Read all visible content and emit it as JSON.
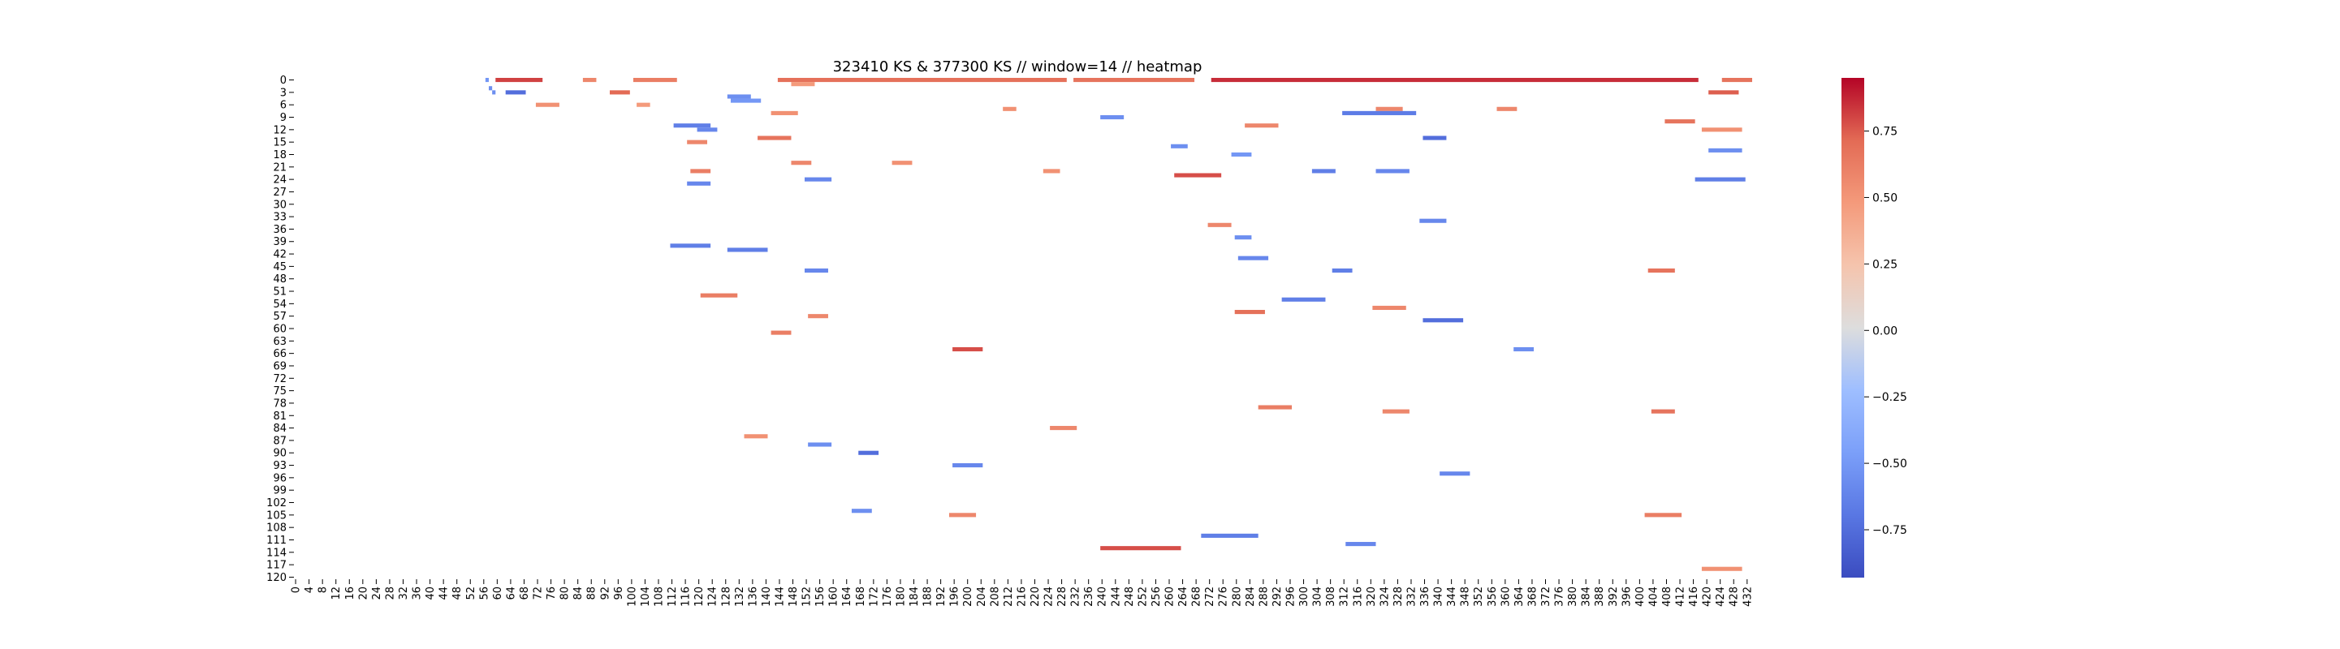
{
  "chart_data": {
    "type": "heatmap",
    "title": "323410 KS & 377300 KS // window=14 // heatmap",
    "xlabel": "",
    "ylabel": "",
    "x_range": [
      0,
      434
    ],
    "y_range": [
      0,
      121
    ],
    "x_tick_labels": [
      "0",
      "4",
      "8",
      "12",
      "16",
      "20",
      "24",
      "28",
      "32",
      "36",
      "40",
      "44",
      "48",
      "52",
      "56",
      "60",
      "64",
      "68",
      "72",
      "76",
      "80",
      "84",
      "88",
      "92",
      "96",
      "100",
      "104",
      "108",
      "112",
      "116",
      "120",
      "124",
      "128",
      "132",
      "136",
      "140",
      "144",
      "148",
      "152",
      "156",
      "160",
      "164",
      "168",
      "172",
      "176",
      "180",
      "184",
      "188",
      "192",
      "196",
      "200",
      "204",
      "208",
      "212",
      "216",
      "220",
      "224",
      "228",
      "232",
      "236",
      "240",
      "244",
      "248",
      "252",
      "256",
      "260",
      "264",
      "268",
      "272",
      "276",
      "280",
      "284",
      "288",
      "292",
      "296",
      "300",
      "304",
      "308",
      "312",
      "316",
      "320",
      "324",
      "328",
      "332",
      "336",
      "340",
      "344",
      "348",
      "352",
      "356",
      "360",
      "364",
      "368",
      "372",
      "376",
      "380",
      "384",
      "388",
      "392",
      "396",
      "400",
      "404",
      "408",
      "412",
      "416",
      "420",
      "424",
      "428",
      "432"
    ],
    "y_tick_labels": [
      "0",
      "3",
      "6",
      "9",
      "12",
      "15",
      "18",
      "21",
      "24",
      "27",
      "30",
      "33",
      "36",
      "39",
      "42",
      "45",
      "48",
      "51",
      "54",
      "57",
      "60",
      "63",
      "66",
      "69",
      "72",
      "75",
      "78",
      "81",
      "84",
      "87",
      "90",
      "93",
      "96",
      "99",
      "102",
      "105",
      "108",
      "111",
      "114",
      "117",
      "120"
    ],
    "colorbar": {
      "colormap": "coolwarm",
      "vmin": -0.93,
      "vmax": 0.95,
      "tick_values": [
        -0.75,
        -0.5,
        -0.25,
        0.0,
        0.25,
        0.5,
        0.75
      ],
      "tick_labels": [
        "−0.75",
        "−0.50",
        "−0.25",
        "0.00",
        "0.25",
        "0.50",
        "0.75"
      ]
    },
    "segments": [
      {
        "row": 0,
        "x0": 57,
        "x1": 58,
        "value": -0.55
      },
      {
        "row": 0,
        "x0": 60,
        "x1": 74,
        "value": 0.85
      },
      {
        "row": 0,
        "x0": 86,
        "x1": 90,
        "value": 0.6
      },
      {
        "row": 0,
        "x0": 101,
        "x1": 114,
        "value": 0.65
      },
      {
        "row": 0,
        "x0": 144,
        "x1": 230,
        "value": 0.72
      },
      {
        "row": 0,
        "x0": 232,
        "x1": 268,
        "value": 0.7
      },
      {
        "row": 0,
        "x0": 273,
        "x1": 418,
        "value": 0.9
      },
      {
        "row": 0,
        "x0": 425,
        "x1": 434,
        "value": 0.7
      },
      {
        "row": 1,
        "x0": 148,
        "x1": 155,
        "value": 0.5
      },
      {
        "row": 2,
        "x0": 58,
        "x1": 59,
        "value": -0.6
      },
      {
        "row": 3,
        "x0": 59,
        "x1": 60,
        "value": -0.6
      },
      {
        "row": 3,
        "x0": 63,
        "x1": 69,
        "value": -0.8
      },
      {
        "row": 3,
        "x0": 94,
        "x1": 100,
        "value": 0.75
      },
      {
        "row": 3,
        "x0": 421,
        "x1": 430,
        "value": 0.78
      },
      {
        "row": 4,
        "x0": 129,
        "x1": 136,
        "value": -0.6
      },
      {
        "row": 5,
        "x0": 130,
        "x1": 139,
        "value": -0.55
      },
      {
        "row": 6,
        "x0": 72,
        "x1": 79,
        "value": 0.55
      },
      {
        "row": 6,
        "x0": 102,
        "x1": 106,
        "value": 0.5
      },
      {
        "row": 7,
        "x0": 211,
        "x1": 215,
        "value": 0.55
      },
      {
        "row": 7,
        "x0": 322,
        "x1": 330,
        "value": 0.6
      },
      {
        "row": 7,
        "x0": 358,
        "x1": 364,
        "value": 0.6
      },
      {
        "row": 8,
        "x0": 142,
        "x1": 150,
        "value": 0.55
      },
      {
        "row": 8,
        "x0": 312,
        "x1": 334,
        "value": -0.72
      },
      {
        "row": 9,
        "x0": 240,
        "x1": 247,
        "value": -0.6
      },
      {
        "row": 10,
        "x0": 408,
        "x1": 417,
        "value": 0.7
      },
      {
        "row": 11,
        "x0": 113,
        "x1": 124,
        "value": -0.7
      },
      {
        "row": 11,
        "x0": 283,
        "x1": 293,
        "value": 0.6
      },
      {
        "row": 12,
        "x0": 120,
        "x1": 126,
        "value": -0.65
      },
      {
        "row": 12,
        "x0": 419,
        "x1": 431,
        "value": 0.55
      },
      {
        "row": 14,
        "x0": 138,
        "x1": 148,
        "value": 0.7
      },
      {
        "row": 14,
        "x0": 336,
        "x1": 343,
        "value": -0.8
      },
      {
        "row": 15,
        "x0": 117,
        "x1": 123,
        "value": 0.6
      },
      {
        "row": 16,
        "x0": 261,
        "x1": 266,
        "value": -0.6
      },
      {
        "row": 17,
        "x0": 421,
        "x1": 431,
        "value": -0.6
      },
      {
        "row": 18,
        "x0": 279,
        "x1": 285,
        "value": -0.55
      },
      {
        "row": 20,
        "x0": 148,
        "x1": 154,
        "value": 0.6
      },
      {
        "row": 20,
        "x0": 178,
        "x1": 184,
        "value": 0.55
      },
      {
        "row": 22,
        "x0": 118,
        "x1": 124,
        "value": 0.65
      },
      {
        "row": 22,
        "x0": 223,
        "x1": 228,
        "value": 0.55
      },
      {
        "row": 22,
        "x0": 303,
        "x1": 310,
        "value": -0.7
      },
      {
        "row": 22,
        "x0": 322,
        "x1": 332,
        "value": -0.65
      },
      {
        "row": 23,
        "x0": 262,
        "x1": 276,
        "value": 0.82
      },
      {
        "row": 24,
        "x0": 152,
        "x1": 160,
        "value": -0.65
      },
      {
        "row": 24,
        "x0": 417,
        "x1": 432,
        "value": -0.7
      },
      {
        "row": 25,
        "x0": 117,
        "x1": 124,
        "value": -0.65
      },
      {
        "row": 34,
        "x0": 335,
        "x1": 343,
        "value": -0.65
      },
      {
        "row": 35,
        "x0": 272,
        "x1": 279,
        "value": 0.6
      },
      {
        "row": 38,
        "x0": 280,
        "x1": 285,
        "value": -0.6
      },
      {
        "row": 40,
        "x0": 112,
        "x1": 124,
        "value": -0.7
      },
      {
        "row": 41,
        "x0": 129,
        "x1": 141,
        "value": -0.7
      },
      {
        "row": 43,
        "x0": 281,
        "x1": 290,
        "value": -0.65
      },
      {
        "row": 46,
        "x0": 309,
        "x1": 315,
        "value": -0.7
      },
      {
        "row": 46,
        "x0": 152,
        "x1": 159,
        "value": -0.65
      },
      {
        "row": 46,
        "x0": 403,
        "x1": 411,
        "value": 0.7
      },
      {
        "row": 52,
        "x0": 121,
        "x1": 132,
        "value": 0.65
      },
      {
        "row": 53,
        "x0": 294,
        "x1": 307,
        "value": -0.7
      },
      {
        "row": 55,
        "x0": 321,
        "x1": 331,
        "value": 0.6
      },
      {
        "row": 56,
        "x0": 280,
        "x1": 289,
        "value": 0.72
      },
      {
        "row": 57,
        "x0": 153,
        "x1": 159,
        "value": 0.6
      },
      {
        "row": 58,
        "x0": 336,
        "x1": 348,
        "value": -0.8
      },
      {
        "row": 61,
        "x0": 142,
        "x1": 148,
        "value": 0.65
      },
      {
        "row": 65,
        "x0": 196,
        "x1": 205,
        "value": 0.82
      },
      {
        "row": 65,
        "x0": 363,
        "x1": 369,
        "value": -0.6
      },
      {
        "row": 80,
        "x0": 404,
        "x1": 411,
        "value": 0.7
      },
      {
        "row": 79,
        "x0": 287,
        "x1": 297,
        "value": 0.65
      },
      {
        "row": 80,
        "x0": 324,
        "x1": 332,
        "value": 0.6
      },
      {
        "row": 84,
        "x0": 225,
        "x1": 233,
        "value": 0.6
      },
      {
        "row": 86,
        "x0": 134,
        "x1": 141,
        "value": 0.55
      },
      {
        "row": 88,
        "x0": 153,
        "x1": 160,
        "value": -0.6
      },
      {
        "row": 90,
        "x0": 168,
        "x1": 174,
        "value": -0.8
      },
      {
        "row": 93,
        "x0": 196,
        "x1": 205,
        "value": -0.65
      },
      {
        "row": 95,
        "x0": 341,
        "x1": 350,
        "value": -0.65
      },
      {
        "row": 104,
        "x0": 166,
        "x1": 172,
        "value": -0.6
      },
      {
        "row": 105,
        "x0": 195,
        "x1": 203,
        "value": 0.6
      },
      {
        "row": 105,
        "x0": 402,
        "x1": 413,
        "value": 0.65
      },
      {
        "row": 110,
        "x0": 270,
        "x1": 287,
        "value": -0.7
      },
      {
        "row": 112,
        "x0": 313,
        "x1": 322,
        "value": -0.65
      },
      {
        "row": 113,
        "x0": 240,
        "x1": 264,
        "value": 0.82
      },
      {
        "row": 118,
        "x0": 419,
        "x1": 431,
        "value": 0.55
      }
    ]
  }
}
